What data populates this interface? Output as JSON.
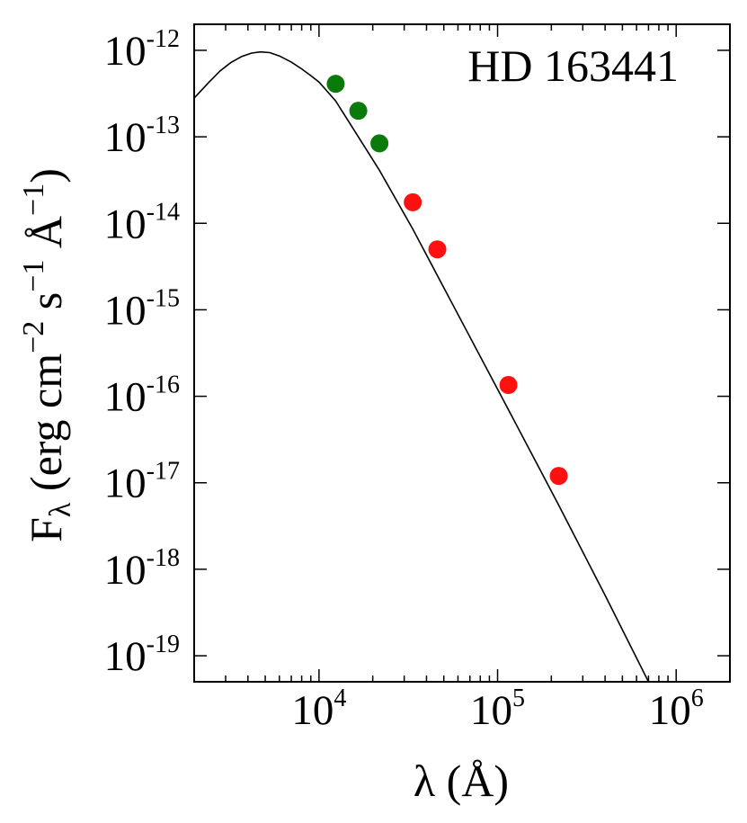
{
  "chart_data": {
    "type": "scatter",
    "title": "",
    "annotation": "HD 163441",
    "xlabel": "λ (Å)",
    "ylabel": "F_λ (erg cm^-2 s^-1 Å^-1)",
    "xscale": "log",
    "yscale": "log",
    "xlim": [
      2000,
      2000000
    ],
    "ylim": [
      5e-20,
      2e-12
    ],
    "grid": false,
    "x_ticks": [
      {
        "base": "10",
        "exp": "4"
      },
      {
        "base": "10",
        "exp": "5"
      },
      {
        "base": "10",
        "exp": "6"
      }
    ],
    "y_ticks": [
      {
        "base": "10",
        "exp": "-12"
      },
      {
        "base": "10",
        "exp": "-13"
      },
      {
        "base": "10",
        "exp": "-14"
      },
      {
        "base": "10",
        "exp": "-15"
      },
      {
        "base": "10",
        "exp": "-16"
      },
      {
        "base": "10",
        "exp": "-17"
      },
      {
        "base": "10",
        "exp": "-18"
      },
      {
        "base": "10",
        "exp": "-19"
      }
    ],
    "series": [
      {
        "color": "#0a7a0a",
        "points": [
          {
            "x": 12400,
            "y": 4.1e-13
          },
          {
            "x": 16600,
            "y": 2e-13
          },
          {
            "x": 21800,
            "y": 8.4e-14
          }
        ]
      },
      {
        "color": "#ff1010",
        "points": [
          {
            "x": 33500,
            "y": 1.75e-14
          },
          {
            "x": 46000,
            "y": 5e-15
          },
          {
            "x": 115000,
            "y": 1.35e-16
          },
          {
            "x": 220000,
            "y": 1.2e-17
          }
        ]
      }
    ],
    "model_curve": {
      "color": "#000000",
      "x": [
        2000,
        2400,
        2800,
        3200,
        3700,
        4200,
        4700,
        5300,
        6000,
        7000,
        8000,
        9000,
        10000,
        12400,
        16600,
        21800,
        33500,
        46000,
        115000,
        220000,
        400000,
        700000
      ],
      "y": [
        2.8e-13,
        4.2e-13,
        5.8e-13,
        7.2e-13,
        8.5e-13,
        9.3e-13,
        9.6e-13,
        9.4e-13,
        8.6e-13,
        7.3e-13,
        6.1e-13,
        5.1e-13,
        4.3e-13,
        2.6e-13,
        1e-13,
        4.1e-14,
        8.6e-15,
        2.5e-15,
        7e-17,
        5.5e-18,
        5e-19,
        5e-20
      ]
    }
  }
}
